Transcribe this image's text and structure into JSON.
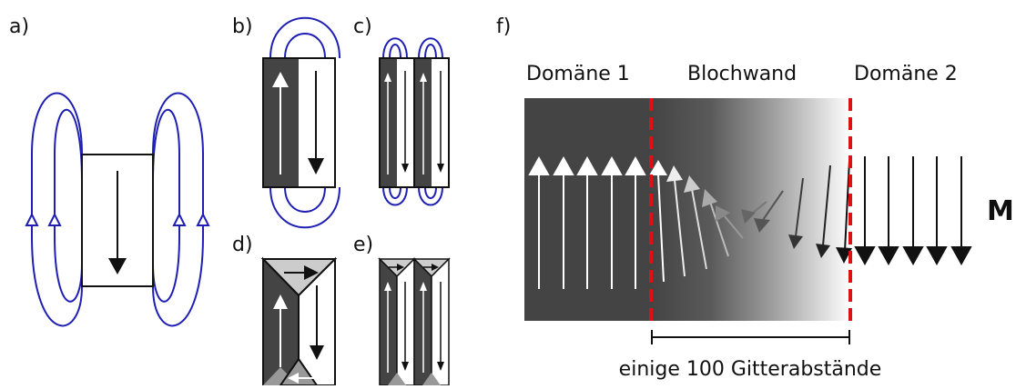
{
  "panels": {
    "a": "a)",
    "b": "b)",
    "c": "c)",
    "d": "d)",
    "e": "e)",
    "f": "f)"
  },
  "regions": {
    "domain1": "Domäne 1",
    "wall": "Blochwand",
    "domain2": "Domäne 2"
  },
  "magnetization_label": "M",
  "scale_label": "einige 100 Gitterabstände",
  "colors": {
    "field_lines": "#1f1fb4",
    "domain_dark": "#444444",
    "domain_light": "#ffffff",
    "wall_edge": "#dd1111",
    "closure_light": "#cccccc",
    "closure_mid": "#999999"
  }
}
